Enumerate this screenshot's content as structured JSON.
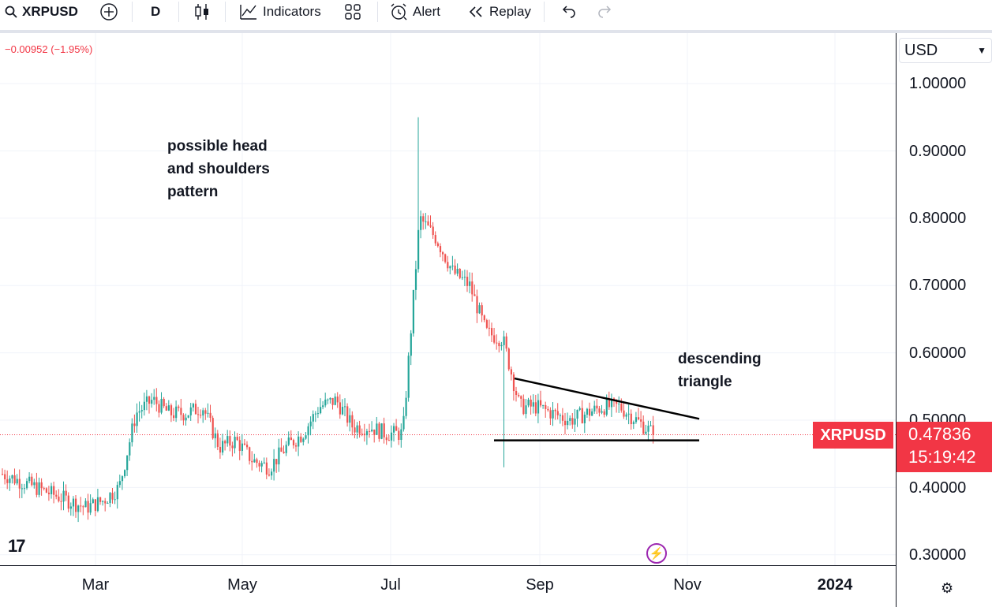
{
  "toolbar": {
    "symbol": "XRPUSD",
    "interval": "D",
    "indicators_label": "Indicators",
    "alert_label": "Alert",
    "replay_label": "Replay"
  },
  "legend": {
    "change": "−0.00952 (−1.95%)"
  },
  "currency": "USD",
  "annotations": {
    "hs_line1": "possible head",
    "hs_line2": "and shoulders",
    "hs_line3": "pattern",
    "tri_line1": "descending",
    "tri_line2": "triangle"
  },
  "price_tag": {
    "symbol": "XRPUSD",
    "price": "0.47836",
    "countdown": "15:19:42"
  },
  "colors": {
    "up": "#26a69a",
    "down": "#ef5350",
    "accent": "#f23645",
    "grid": "#f0f3fa"
  },
  "chart_data": {
    "type": "candlestick",
    "y_ticks": [
      "1.00000",
      "0.90000",
      "0.80000",
      "0.70000",
      "0.60000",
      "0.50000",
      "0.40000",
      "0.30000"
    ],
    "x_ticks": [
      "Mar",
      "May",
      "Jul",
      "Sep",
      "Nov",
      "2024"
    ],
    "ylim": [
      0.28,
      1.05
    ],
    "last_price": 0.47836,
    "weekly_closes": [
      0.42,
      0.41,
      0.4,
      0.39,
      0.38,
      0.37,
      0.38,
      0.4,
      0.51,
      0.53,
      0.51,
      0.51,
      0.52,
      0.46,
      0.47,
      0.44,
      0.43,
      0.46,
      0.48,
      0.52,
      0.53,
      0.49,
      0.49,
      0.48,
      0.48,
      0.8,
      0.77,
      0.72,
      0.7,
      0.63,
      0.62,
      0.52,
      0.52,
      0.51,
      0.5,
      0.51,
      0.52,
      0.52,
      0.5,
      0.48
    ],
    "triangle_upper": {
      "from_price": 0.562,
      "to_price": 0.502
    },
    "triangle_support": 0.47
  }
}
